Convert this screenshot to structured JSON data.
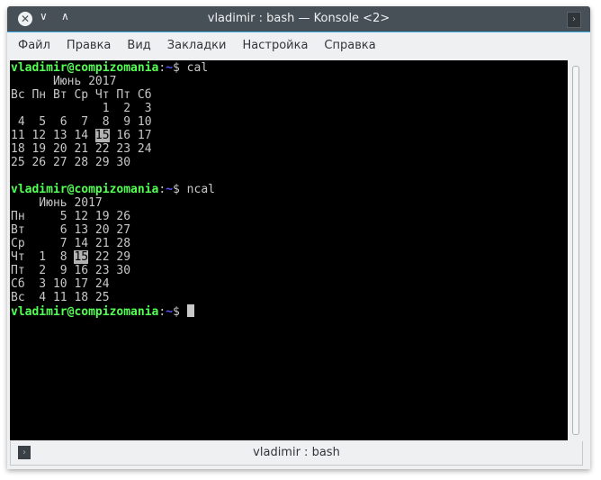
{
  "window": {
    "title": "vladimir : bash — Konsole <2>"
  },
  "titlebar_icons": {
    "close": "close-icon",
    "minimize": "chevron-down-icon",
    "maximize": "chevron-up-icon",
    "right": "chevron-right-icon"
  },
  "menu": [
    "Файл",
    "Правка",
    "Вид",
    "Закладки",
    "Настройка",
    "Справка"
  ],
  "colors": {
    "prompt_user": "#54ff54",
    "prompt_path": "#5454ff",
    "text": "#c8c8c8",
    "background": "#000000",
    "highlight": "#b2b2b2"
  },
  "terminal": {
    "lines": [
      [
        {
          "t": "vladimir@compizomania",
          "c": "g"
        },
        {
          "t": ":",
          "c": "c"
        },
        {
          "t": "~",
          "c": "b"
        },
        {
          "t": "$ cal",
          "c": "c"
        }
      ],
      [
        {
          "t": "      Июнь 2017",
          "c": "c"
        }
      ],
      [
        {
          "t": "Вс Пн Вт Ср Чт Пт Сб",
          "c": "c"
        }
      ],
      [
        {
          "t": "             1  2  3",
          "c": "c"
        }
      ],
      [
        {
          "t": " 4  5  6  7  8  9 10",
          "c": "c"
        }
      ],
      [
        {
          "t": "11 12 13 14 ",
          "c": "c"
        },
        {
          "t": "15",
          "c": "hl"
        },
        {
          "t": " 16 17",
          "c": "c"
        }
      ],
      [
        {
          "t": "18 19 20 21 22 23 24",
          "c": "c"
        }
      ],
      [
        {
          "t": "25 26 27 28 29 30",
          "c": "c"
        }
      ],
      [
        {
          "t": "",
          "c": "c"
        }
      ],
      [
        {
          "t": "vladimir@compizomania",
          "c": "g"
        },
        {
          "t": ":",
          "c": "c"
        },
        {
          "t": "~",
          "c": "b"
        },
        {
          "t": "$ ncal",
          "c": "c"
        }
      ],
      [
        {
          "t": "    Июнь 2017",
          "c": "c"
        }
      ],
      [
        {
          "t": "Пн     5 12 19 26",
          "c": "c"
        }
      ],
      [
        {
          "t": "Вт     6 13 20 27",
          "c": "c"
        }
      ],
      [
        {
          "t": "Ср     7 14 21 28",
          "c": "c"
        }
      ],
      [
        {
          "t": "Чт  1  8 ",
          "c": "c"
        },
        {
          "t": "15",
          "c": "hl"
        },
        {
          "t": " 22 29",
          "c": "c"
        }
      ],
      [
        {
          "t": "Пт  2  9 16 23 30",
          "c": "c"
        }
      ],
      [
        {
          "t": "Сб  3 10 17 24",
          "c": "c"
        }
      ],
      [
        {
          "t": "Вс  4 11 18 25",
          "c": "c"
        }
      ],
      [
        {
          "t": "vladimir@compizomania",
          "c": "g"
        },
        {
          "t": ":",
          "c": "c"
        },
        {
          "t": "~",
          "c": "b"
        },
        {
          "t": "$ ",
          "c": "c"
        }
      ]
    ]
  },
  "tab": {
    "label": "vladimir : bash"
  }
}
